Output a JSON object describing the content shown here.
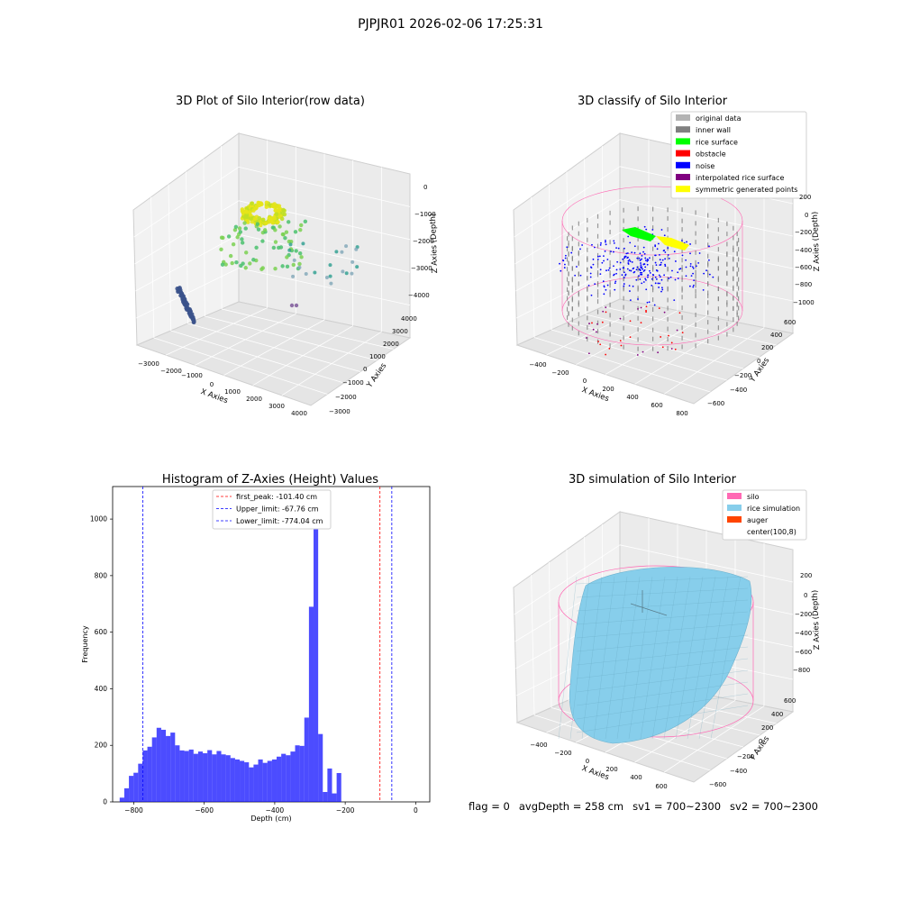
{
  "suptitle": "PJPJR01 2026-02-06 17:25:31",
  "chart_data": [
    {
      "type": "scatter",
      "title": "3D Plot of Silo Interior(row data)",
      "xlabel": "X Axies",
      "ylabel": "Y Axies",
      "zlabel": "Z Axies (Depth)",
      "x_ticks": [
        "−3000",
        "−2000",
        "−1000",
        "0",
        "1000",
        "2000",
        "3000",
        "4000"
      ],
      "y_ticks": [
        "−3000",
        "−2000",
        "−1000",
        "0",
        "1000",
        "2000",
        "3000",
        "4000"
      ],
      "z_ticks": [
        "0",
        "−1000",
        "−2000",
        "−3000",
        "−4000"
      ],
      "xlim": [
        -3300,
        4000
      ],
      "ylim": [
        -3300,
        4000
      ],
      "zlim": [
        -4500,
        0
      ],
      "colormap": "viridis"
    },
    {
      "type": "scatter",
      "title": "3D classify of Silo Interior",
      "xlabel": "X Axies",
      "ylabel": "Y Axies",
      "zlabel": "Z Axies (Depth)",
      "x_ticks": [
        "−400",
        "−200",
        "0",
        "200",
        "400",
        "600",
        "800"
      ],
      "y_ticks": [
        "−600",
        "−400",
        "−200",
        "0",
        "200",
        "400",
        "600"
      ],
      "z_ticks": [
        "200",
        "0",
        "−200",
        "−400",
        "−600",
        "−800",
        "−1000"
      ],
      "legend": [
        {
          "label": "original data",
          "color": "#b3b3b3"
        },
        {
          "label": "inner wall",
          "color": "#808080"
        },
        {
          "label": "rice surface",
          "color": "#00ff00"
        },
        {
          "label": "obstacle",
          "color": "#ff0000"
        },
        {
          "label": "noise",
          "color": "#0000ff"
        },
        {
          "label": "interpolated rice surface",
          "color": "#800080"
        },
        {
          "label": "symmetric generated points",
          "color": "#ffff00"
        }
      ]
    },
    {
      "type": "bar",
      "title": "Histogram of Z-Axies (Height) Values",
      "xlabel": "Depth (cm)",
      "ylabel": "Frequency",
      "xlim": [
        -860,
        40
      ],
      "ylim": [
        0,
        1115
      ],
      "x_ticks": [
        -800,
        -600,
        -400,
        -200,
        0
      ],
      "x_tick_labels": [
        "−800",
        "−600",
        "−400",
        "−200",
        "0"
      ],
      "y_ticks": [
        0,
        200,
        400,
        600,
        800,
        1000
      ],
      "bar_color": "#0000ff",
      "bin_edges_start": -840,
      "bin_width": 13.1,
      "values": [
        15,
        48,
        92,
        103,
        135,
        182,
        195,
        228,
        262,
        255,
        233,
        245,
        200,
        182,
        180,
        185,
        170,
        178,
        172,
        183,
        168,
        180,
        168,
        165,
        155,
        150,
        145,
        140,
        122,
        132,
        150,
        138,
        145,
        150,
        160,
        170,
        165,
        178,
        200,
        198,
        298,
        690,
        1068,
        240,
        35,
        118,
        30,
        102
      ],
      "vlines": [
        {
          "x": -101.4,
          "color": "#ff0000",
          "label": "first_peak: -101.40 cm"
        },
        {
          "x": -67.76,
          "color": "#0000ff",
          "label": "Upper_limit: -67.76 cm"
        },
        {
          "x": -774.04,
          "color": "#0000ff",
          "label": "Lower_limit: -774.04 cm"
        }
      ]
    },
    {
      "type": "area",
      "title": "3D simulation of Silo Interior",
      "xlabel": "X Axies",
      "ylabel": "Y Axies",
      "zlabel": "Z Axies (Depth)",
      "x_ticks": [
        "−400",
        "−200",
        "0",
        "200",
        "400",
        "600"
      ],
      "y_ticks": [
        "−600",
        "−400",
        "−200",
        "0",
        "200",
        "400",
        "600"
      ],
      "z_ticks": [
        "200",
        "0",
        "−200",
        "−400",
        "−600",
        "−800"
      ],
      "legend": [
        {
          "label": "silo",
          "color": "#ff69b4"
        },
        {
          "label": "rice simulation",
          "color": "#87ceeb"
        },
        {
          "label": "auger",
          "color": "#ff4500"
        },
        {
          "label": "center(100,8)",
          "color": ""
        }
      ]
    }
  ],
  "footer": {
    "flag": "flag = 0",
    "avg_depth": "avgDepth = 258 cm",
    "sv1": "sv1 = 700~2300",
    "sv2": "sv2 = 700~2300"
  }
}
